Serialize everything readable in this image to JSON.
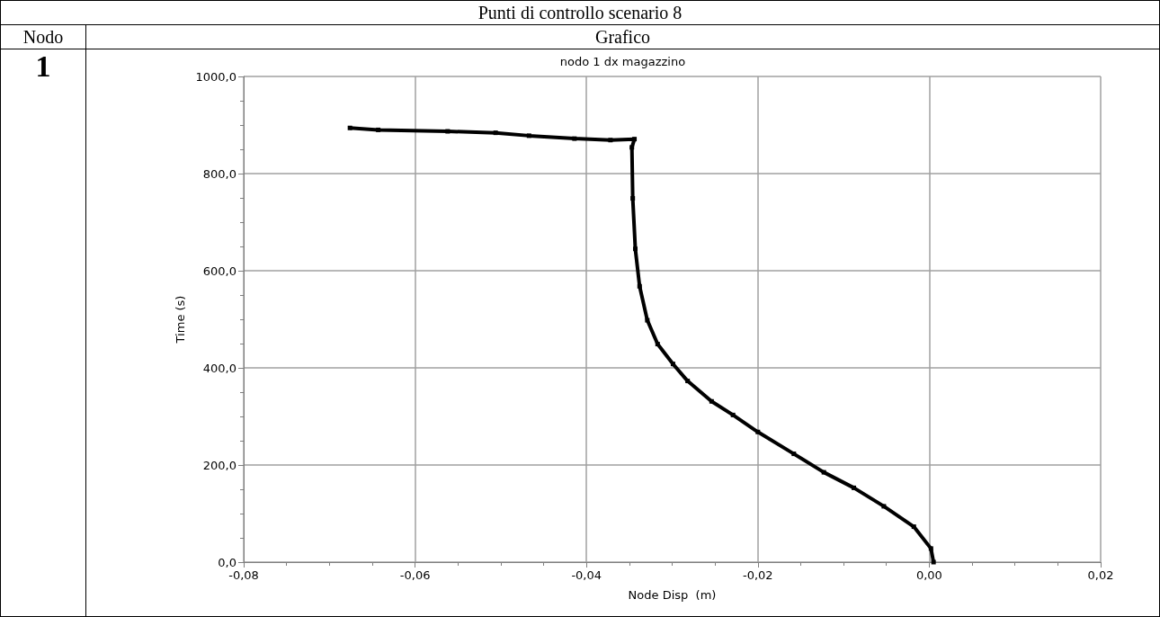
{
  "chart_data": {
    "type": "line",
    "title": "nodo 1 dx magazzino",
    "xlabel": "Node Disp  (m)",
    "ylabel": "Time (s)",
    "annotations": [
      "Punti di controllo scenario 8",
      "Nodo",
      "Grafico",
      "1"
    ],
    "xlim": [
      -0.08,
      0.02
    ],
    "xticks": [
      {
        "value": -0.08,
        "label": "-0,08"
      },
      {
        "value": -0.06,
        "label": "-0,06"
      },
      {
        "value": -0.04,
        "label": "-0,04"
      },
      {
        "value": -0.02,
        "label": "-0,02"
      },
      {
        "value": 0,
        "label": "0,00"
      },
      {
        "value": 0.02,
        "label": "0,02"
      }
    ],
    "ylim": [
      0,
      1000
    ],
    "yticks": [
      {
        "value": 0,
        "label": "0,0"
      },
      {
        "value": 200,
        "label": "200,0"
      },
      {
        "value": 400,
        "label": "400,0"
      },
      {
        "value": 600,
        "label": "600,0"
      },
      {
        "value": 800,
        "label": "800,0"
      },
      {
        "value": 1000,
        "label": "1000,0"
      }
    ],
    "grid": true,
    "marker": "square",
    "line_style": "solid",
    "series": [
      {
        "color": "#000000",
        "x": [
          0.0005,
          0.0002,
          -0.0018,
          -0.0053,
          -0.0088,
          -0.0123,
          -0.0158,
          -0.02,
          -0.0229,
          -0.0254,
          -0.0282,
          -0.0299,
          -0.0317,
          -0.0329,
          -0.0338,
          -0.0343,
          -0.0346,
          -0.0347,
          -0.0344,
          -0.0372,
          -0.0414,
          -0.0467,
          -0.0506,
          -0.0562,
          -0.0643,
          -0.0676
        ],
        "values": [
          0,
          28,
          73,
          115,
          153,
          185,
          223,
          268,
          303,
          331,
          373,
          408,
          449,
          498,
          568,
          645,
          749,
          854,
          871,
          869,
          872,
          878,
          884,
          887,
          890,
          894
        ]
      }
    ]
  }
}
